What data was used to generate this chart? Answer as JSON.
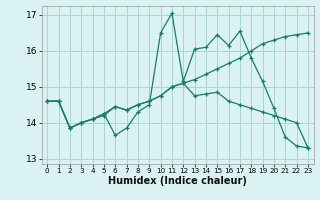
{
  "xlabel": "Humidex (Indice chaleur)",
  "bg_color": "#daf2f2",
  "grid_color": "#aad4d4",
  "line_color": "#1a7a6e",
  "xlim": [
    -0.5,
    23.5
  ],
  "ylim": [
    12.85,
    17.25
  ],
  "yticks": [
    13,
    14,
    15,
    16,
    17
  ],
  "xticks": [
    0,
    1,
    2,
    3,
    4,
    5,
    6,
    7,
    8,
    9,
    10,
    11,
    12,
    13,
    14,
    15,
    16,
    17,
    18,
    19,
    20,
    21,
    22,
    23
  ],
  "line1_x": [
    0,
    1,
    2,
    3,
    4,
    5,
    6,
    7,
    8,
    9,
    10,
    11,
    12,
    13,
    14,
    15,
    16,
    17,
    18,
    19,
    20,
    21,
    22,
    23
  ],
  "line1_y": [
    14.6,
    14.6,
    13.85,
    14.0,
    14.1,
    14.2,
    14.45,
    14.35,
    14.5,
    14.6,
    14.75,
    15.0,
    15.1,
    15.2,
    15.35,
    15.5,
    15.65,
    15.8,
    16.0,
    16.2,
    16.3,
    16.4,
    16.45,
    16.5
  ],
  "line2_x": [
    0,
    1,
    2,
    3,
    4,
    5,
    6,
    7,
    8,
    9,
    10,
    11,
    12,
    13,
    14,
    15,
    16,
    17,
    18,
    19,
    20,
    21,
    22,
    23
  ],
  "line2_y": [
    14.6,
    14.6,
    13.85,
    14.0,
    14.1,
    14.25,
    13.65,
    13.85,
    14.3,
    14.5,
    16.5,
    17.05,
    15.15,
    16.05,
    16.1,
    16.45,
    16.15,
    16.55,
    15.8,
    15.15,
    14.4,
    13.6,
    13.35,
    13.3
  ],
  "line3_x": [
    0,
    1,
    2,
    3,
    4,
    5,
    6,
    7,
    8,
    9,
    10,
    11,
    12,
    13,
    14,
    15,
    16,
    17,
    18,
    19,
    20,
    21,
    22,
    23
  ],
  "line3_y": [
    14.6,
    14.6,
    13.85,
    14.0,
    14.1,
    14.25,
    14.45,
    14.35,
    14.5,
    14.6,
    14.75,
    15.0,
    15.1,
    14.75,
    14.8,
    14.85,
    14.6,
    14.5,
    14.4,
    14.3,
    14.2,
    14.1,
    14.0,
    13.3
  ]
}
